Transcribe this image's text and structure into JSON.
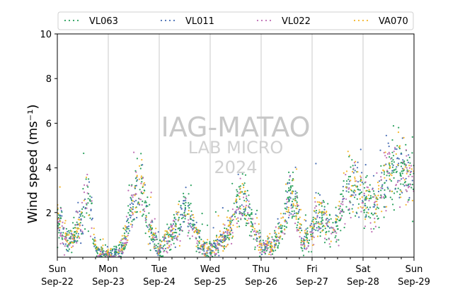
{
  "chart_data": {
    "type": "scatter",
    "title": "",
    "ylabel": "Wind speed (ms⁻¹)",
    "xlabel": "",
    "ylim": [
      0,
      10
    ],
    "xlim": [
      0,
      7
    ],
    "yticks": [
      2,
      4,
      6,
      8,
      10
    ],
    "x_ticks": [
      {
        "day": 0,
        "line1": "Sun",
        "line2": "Sep-22"
      },
      {
        "day": 1,
        "line1": "Mon",
        "line2": "Sep-23"
      },
      {
        "day": 2,
        "line1": "Tue",
        "line2": "Sep-24"
      },
      {
        "day": 3,
        "line1": "Wed",
        "line2": "Sep-25"
      },
      {
        "day": 4,
        "line1": "Thu",
        "line2": "Sep-26"
      },
      {
        "day": 5,
        "line1": "Fri",
        "line2": "Sep-27"
      },
      {
        "day": 6,
        "line1": "Sat",
        "line2": "Sep-28"
      },
      {
        "day": 7,
        "line1": "Sun",
        "line2": "Sep-29"
      }
    ],
    "grid": "vertical at day boundaries",
    "legend_position": "top",
    "watermark": [
      "IAG-MATAO",
      "LAB MICRO",
      "2024"
    ],
    "series": [
      {
        "name": "VL063",
        "color": "#2ca25f",
        "offset": 0.0
      },
      {
        "name": "VL011",
        "color": "#4a6fb5",
        "offset": 0.05
      },
      {
        "name": "VL022",
        "color": "#c06fb5",
        "offset": -0.05
      },
      {
        "name": "VA070",
        "color": "#f5b82e",
        "offset": 0.12
      }
    ],
    "trend_points": [
      [
        0.0,
        1.6
      ],
      [
        0.08,
        1.5
      ],
      [
        0.2,
        0.6
      ],
      [
        0.35,
        1.0
      ],
      [
        0.48,
        1.8
      ],
      [
        0.62,
        3.0
      ],
      [
        0.7,
        1.0
      ],
      [
        0.78,
        0.2
      ],
      [
        1.0,
        0.1
      ],
      [
        1.25,
        0.3
      ],
      [
        1.35,
        1.0
      ],
      [
        1.5,
        2.5
      ],
      [
        1.65,
        3.5
      ],
      [
        1.8,
        1.2
      ],
      [
        2.0,
        0.3
      ],
      [
        2.2,
        0.9
      ],
      [
        2.4,
        1.6
      ],
      [
        2.55,
        2.3
      ],
      [
        2.7,
        1.2
      ],
      [
        2.85,
        0.3
      ],
      [
        3.05,
        0.3
      ],
      [
        3.25,
        0.8
      ],
      [
        3.4,
        1.2
      ],
      [
        3.55,
        2.2
      ],
      [
        3.7,
        2.6
      ],
      [
        3.85,
        1.0
      ],
      [
        4.0,
        0.5
      ],
      [
        4.25,
        0.5
      ],
      [
        4.45,
        1.6
      ],
      [
        4.55,
        2.7
      ],
      [
        4.7,
        2.2
      ],
      [
        4.8,
        0.6
      ],
      [
        5.0,
        1.0
      ],
      [
        5.1,
        2.0
      ],
      [
        5.25,
        1.5
      ],
      [
        5.4,
        1.1
      ],
      [
        5.55,
        1.8
      ],
      [
        5.7,
        3.2
      ],
      [
        5.85,
        3.2
      ],
      [
        6.05,
        2.6
      ],
      [
        6.25,
        2.3
      ],
      [
        6.45,
        3.6
      ],
      [
        6.6,
        4.1
      ],
      [
        6.8,
        3.7
      ],
      [
        7.0,
        3.5
      ]
    ]
  }
}
